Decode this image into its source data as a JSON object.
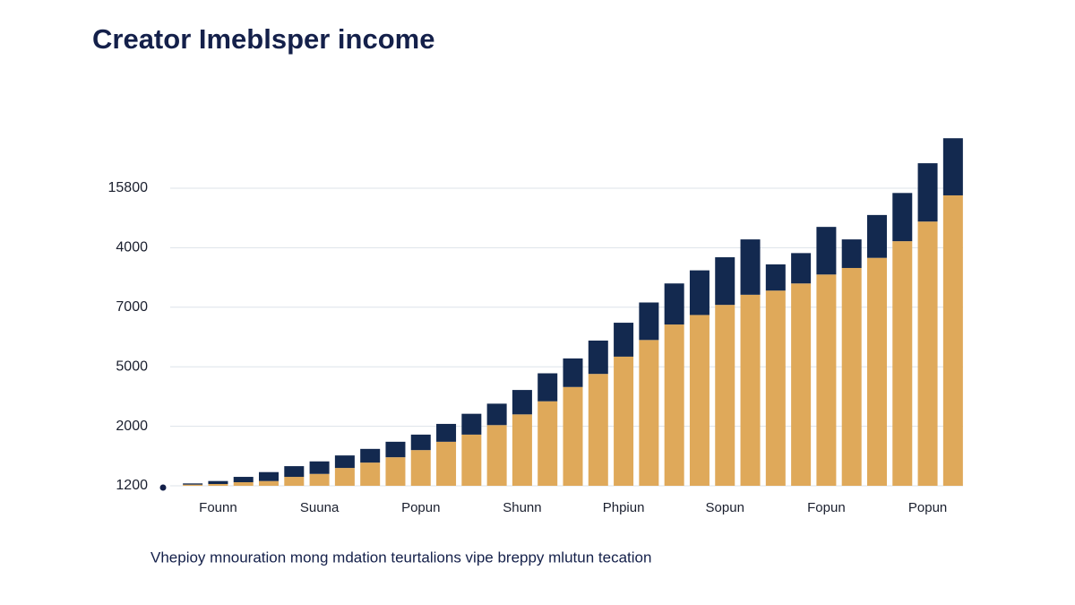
{
  "chart_data": {
    "type": "stacked-bar",
    "title": "Creator Imeblsper income",
    "caption": "Vhepioy mnouration mong mdation teurtalions vipe breppy mlutun tecation",
    "categories": [
      null,
      "Founn",
      null,
      null,
      null,
      "Suuna",
      null,
      null,
      null,
      "Popun",
      null,
      null,
      null,
      "Shunn",
      null,
      null,
      null,
      "Phpiun",
      null,
      null,
      null,
      "Sopun",
      null,
      null,
      null,
      "Fopun",
      null,
      null,
      null,
      "Popun",
      null
    ],
    "series": [
      {
        "color": "#dfa95a",
        "values": [
          0.02,
          0.03,
          0.06,
          0.08,
          0.15,
          0.2,
          0.3,
          0.39,
          0.48,
          0.6,
          0.74,
          0.86,
          1.02,
          1.2,
          1.42,
          1.66,
          1.88,
          2.17,
          2.45,
          2.71,
          2.87,
          3.04,
          3.21,
          3.28,
          3.4,
          3.55,
          3.66,
          3.83,
          4.11,
          4.44,
          4.88
        ]
      },
      {
        "color": "#13294f",
        "values": [
          0.02,
          0.05,
          0.09,
          0.15,
          0.18,
          0.21,
          0.21,
          0.23,
          0.26,
          0.26,
          0.3,
          0.35,
          0.36,
          0.41,
          0.47,
          0.48,
          0.56,
          0.57,
          0.63,
          0.69,
          0.75,
          0.8,
          0.93,
          0.44,
          0.51,
          0.8,
          0.48,
          0.72,
          0.81,
          0.98,
          0.96
        ]
      }
    ],
    "ylim": [
      0,
      6
    ],
    "yticks": [
      {
        "value": 0,
        "label": "1200"
      },
      {
        "value": 1,
        "label": "2000"
      },
      {
        "value": 2,
        "label": "5000"
      },
      {
        "value": 3,
        "label": "7000"
      },
      {
        "value": 4,
        "label": "4000"
      },
      {
        "value": 5,
        "label": "15800"
      }
    ],
    "grid": true
  }
}
